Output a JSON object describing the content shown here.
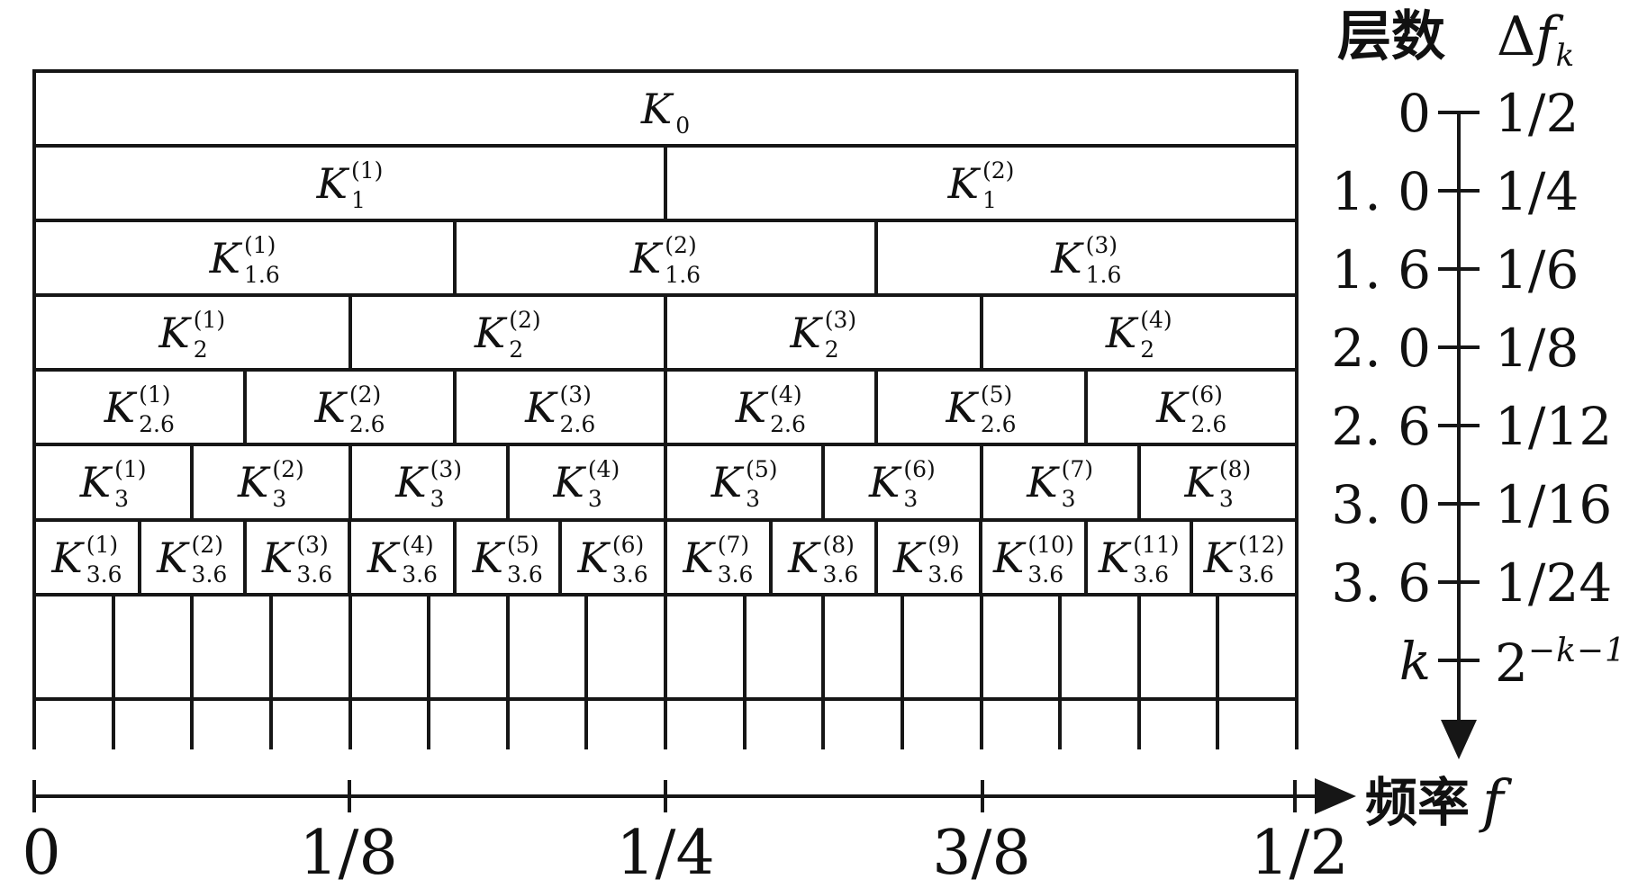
{
  "figure": {
    "base_symbol": "K",
    "grid_rows": [
      {
        "name": "K0",
        "cells": [
          {
            "sup": "",
            "sub": "0"
          }
        ]
      },
      {
        "name": "K1",
        "cells": [
          {
            "sup": "(1)",
            "sub": "1"
          },
          {
            "sup": "(2)",
            "sub": "1"
          }
        ]
      },
      {
        "name": "K1.6",
        "cells": [
          {
            "sup": "(1)",
            "sub": "1.6"
          },
          {
            "sup": "(2)",
            "sub": "1.6"
          },
          {
            "sup": "(3)",
            "sub": "1.6"
          }
        ]
      },
      {
        "name": "K2",
        "cells": [
          {
            "sup": "(1)",
            "sub": "2"
          },
          {
            "sup": "(2)",
            "sub": "2"
          },
          {
            "sup": "(3)",
            "sub": "2"
          },
          {
            "sup": "(4)",
            "sub": "2"
          }
        ]
      },
      {
        "name": "K2.6",
        "cells": [
          {
            "sup": "(1)",
            "sub": "2.6"
          },
          {
            "sup": "(2)",
            "sub": "2.6"
          },
          {
            "sup": "(3)",
            "sub": "2.6"
          },
          {
            "sup": "(4)",
            "sub": "2.6"
          },
          {
            "sup": "(5)",
            "sub": "2.6"
          },
          {
            "sup": "(6)",
            "sub": "2.6"
          }
        ]
      },
      {
        "name": "K3",
        "cells": [
          {
            "sup": "(1)",
            "sub": "3"
          },
          {
            "sup": "(2)",
            "sub": "3"
          },
          {
            "sup": "(3)",
            "sub": "3"
          },
          {
            "sup": "(4)",
            "sub": "3"
          },
          {
            "sup": "(5)",
            "sub": "3"
          },
          {
            "sup": "(6)",
            "sub": "3"
          },
          {
            "sup": "(7)",
            "sub": "3"
          },
          {
            "sup": "(8)",
            "sub": "3"
          }
        ]
      },
      {
        "name": "K3.6",
        "cells": [
          {
            "sup": "(1)",
            "sub": "3.6"
          },
          {
            "sup": "(2)",
            "sub": "3.6"
          },
          {
            "sup": "(3)",
            "sub": "3.6"
          },
          {
            "sup": "(4)",
            "sub": "3.6"
          },
          {
            "sup": "(5)",
            "sub": "3.6"
          },
          {
            "sup": "(6)",
            "sub": "3.6"
          },
          {
            "sup": "(7)",
            "sub": "3.6"
          },
          {
            "sup": "(8)",
            "sub": "3.6"
          },
          {
            "sup": "(9)",
            "sub": "3.6"
          },
          {
            "sup": "(10)",
            "sub": "3.6"
          },
          {
            "sup": "(11)",
            "sub": "3.6"
          },
          {
            "sup": "(12)",
            "sub": "3.6"
          }
        ]
      },
      {
        "name": "level-4-unlabeled",
        "cells": [],
        "empty_cell_count": 16
      },
      {
        "name": "continuation-unlabeled",
        "cells": [],
        "empty_cell_count": 16,
        "open_bottom": true
      }
    ]
  },
  "right_axis": {
    "col1_header": "层数",
    "header_delta": "Δ",
    "header_f": "f",
    "header_f_sub": "k",
    "ticks": [
      {
        "level": "0",
        "value": "1/2"
      },
      {
        "level": "1. 0",
        "value": "1/4"
      },
      {
        "level": "1. 6",
        "value": "1/6"
      },
      {
        "level": "2. 0",
        "value": "1/8"
      },
      {
        "level": "2. 6",
        "value": "1/12"
      },
      {
        "level": "3. 0",
        "value": "1/16"
      },
      {
        "level": "3. 6",
        "value": "1/24"
      },
      {
        "level": "k",
        "value_base": "2",
        "value_sup": "−k−1"
      }
    ]
  },
  "freq_axis": {
    "label_cn": "频率",
    "label_f": "f",
    "ticks": [
      "0",
      "1/8",
      "1/4",
      "3/8",
      "1/2"
    ]
  },
  "colors": {
    "line": "#161616",
    "background": "#ffffff",
    "text": "#111111"
  }
}
